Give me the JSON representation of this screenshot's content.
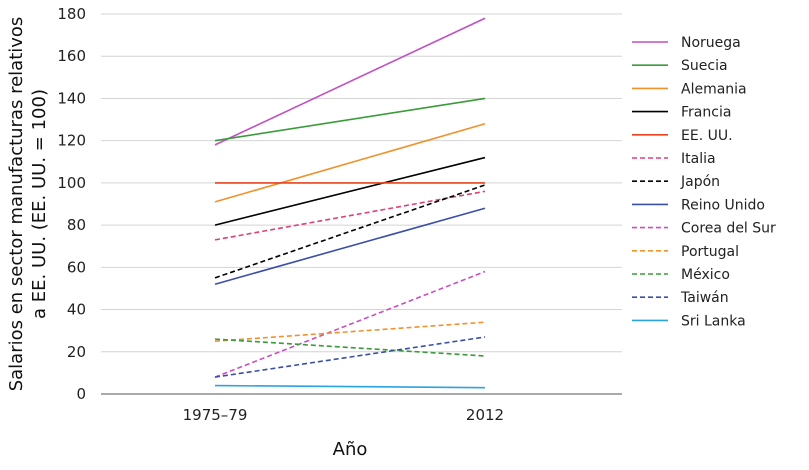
{
  "chart_data": {
    "type": "line",
    "xlabel": "Año",
    "ylabel_line1": "Salarios en sector manufacturas relativos",
    "ylabel_line2": "a EE. UU. (EE. UU. = 100)",
    "categories": [
      "1975–79",
      "2012"
    ],
    "ylim": [
      0,
      180
    ],
    "yticks": [
      0,
      20,
      40,
      60,
      80,
      100,
      120,
      140,
      160,
      180
    ],
    "grid": "horizontal",
    "legend_position": "right",
    "series": [
      {
        "name": "Noruega",
        "values": [
          118,
          178
        ],
        "color": "#c14fc4",
        "dashed": false
      },
      {
        "name": "Suecia",
        "values": [
          120,
          140
        ],
        "color": "#3a9b3a",
        "dashed": false
      },
      {
        "name": "Alemania",
        "values": [
          91,
          128
        ],
        "color": "#f0922b",
        "dashed": false
      },
      {
        "name": "Francia",
        "values": [
          80,
          112
        ],
        "color": "#000000",
        "dashed": false
      },
      {
        "name": "EE. UU.",
        "values": [
          100,
          100
        ],
        "color": "#e8431d",
        "dashed": false
      },
      {
        "name": "Italia",
        "values": [
          73,
          96
        ],
        "color": "#dd3f79",
        "dashed": true
      },
      {
        "name": "Japón",
        "values": [
          55,
          99
        ],
        "color": "#000000",
        "dashed": true
      },
      {
        "name": "Reino Unido",
        "values": [
          52,
          88
        ],
        "color": "#3b4fa8",
        "dashed": false
      },
      {
        "name": "Corea del Sur",
        "values": [
          8,
          58
        ],
        "color": "#c94fc0",
        "dashed": true
      },
      {
        "name": "Portugal",
        "values": [
          25,
          34
        ],
        "color": "#f0922b",
        "dashed": true
      },
      {
        "name": "México",
        "values": [
          26,
          18
        ],
        "color": "#3a9b3a",
        "dashed": true
      },
      {
        "name": "Taiwán",
        "values": [
          8,
          27
        ],
        "color": "#3b4fa8",
        "dashed": true
      },
      {
        "name": "Sri Lanka",
        "values": [
          4,
          3
        ],
        "color": "#29a4e0",
        "dashed": false
      }
    ]
  }
}
